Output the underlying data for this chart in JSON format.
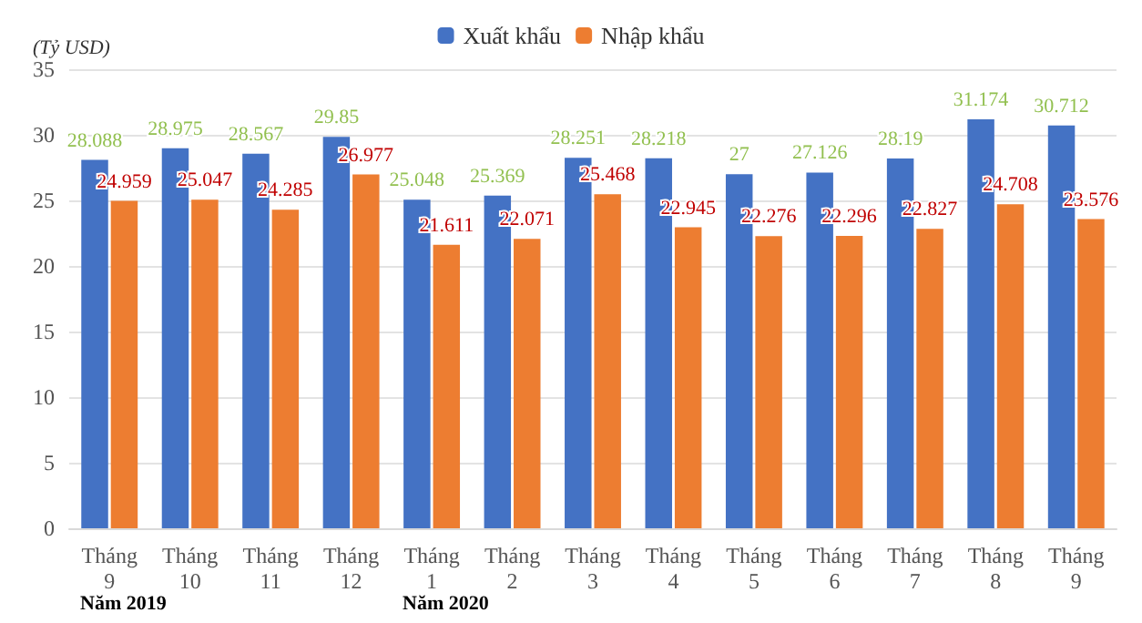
{
  "chart_data": {
    "type": "bar",
    "ylabel": "(Tỷ USD)",
    "categories": [
      "Tháng\n9",
      "Tháng\n10",
      "Tháng\n11",
      "Tháng\n12",
      "Tháng\n1",
      "Tháng\n2",
      "Tháng\n3",
      "Tháng\n4",
      "Tháng\n5",
      "Tháng\n6",
      "Tháng\n7",
      "Tháng\n8",
      "Tháng\n9"
    ],
    "series": [
      {
        "name": "Xuất khẩu",
        "color": "#4472c4",
        "values": [
          28.088,
          28.975,
          28.567,
          29.85,
          25.048,
          25.369,
          28.251,
          28.218,
          27,
          27.126,
          28.19,
          31.174,
          30.712
        ]
      },
      {
        "name": "Nhập khẩu",
        "color": "#ed7d31",
        "values": [
          24.959,
          25.047,
          24.285,
          26.977,
          21.611,
          22.071,
          25.468,
          22.945,
          22.276,
          22.296,
          22.827,
          24.708,
          23.576
        ]
      }
    ],
    "ylim": [
      0,
      35
    ],
    "yticks": [
      0,
      5,
      10,
      15,
      20,
      25,
      30,
      35
    ],
    "grid": "y",
    "legend": "top",
    "data_labels": true,
    "annotations": [
      "Năm 2019",
      "Năm 2020"
    ]
  }
}
